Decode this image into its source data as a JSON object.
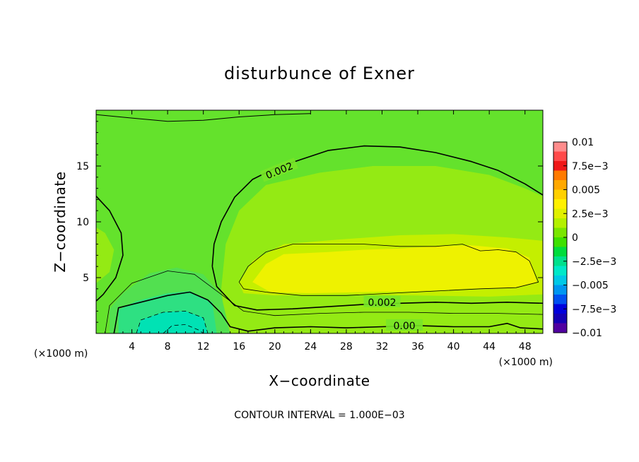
{
  "chart_data": {
    "type": "heatmap",
    "title": "disturbunce of Exner",
    "xlabel": "X−coordinate",
    "ylabel": "Z−coordinate",
    "x_unit_left": "(×1000 m)",
    "x_unit_right": "(×1000 m)",
    "xlim": [
      0,
      50
    ],
    "ylim": [
      0,
      20
    ],
    "x_ticks": [
      4,
      8,
      12,
      16,
      20,
      24,
      28,
      32,
      36,
      40,
      44,
      48
    ],
    "x_tick_labels": [
      "4",
      "8",
      "12",
      "16",
      "20",
      "24",
      "28",
      "32",
      "36",
      "40",
      "44",
      "48"
    ],
    "y_ticks": [
      5,
      10,
      15
    ],
    "y_tick_labels": [
      "5",
      "10",
      "15"
    ],
    "contour_interval_text": "CONTOUR INTERVAL = 1.000E−03",
    "contour_interval": 0.001,
    "contour_labels": [
      {
        "text": "0.002",
        "x": 20.5,
        "z": 14.6,
        "angle": -22
      },
      {
        "text": "0.002",
        "x": 32.0,
        "z": 2.8,
        "angle": 0
      },
      {
        "text": "0.00",
        "x": 34.5,
        "z": 0.7,
        "angle": 0
      }
    ],
    "colorbar": {
      "labels": [
        "0.01",
        "7.5e−3",
        "0.005",
        "2.5e−3",
        "0",
        "−2.5e−3",
        "−0.005",
        "−7.5e−3",
        "−0.01"
      ],
      "values": [
        0.01,
        0.0075,
        0.005,
        0.0025,
        0,
        -0.0025,
        -0.005,
        -0.0075,
        -0.01
      ],
      "colors": [
        "#ff8c8c",
        "#ff4a4a",
        "#f01818",
        "#ff7a00",
        "#ffa800",
        "#ffd000",
        "#fff000",
        "#e0f000",
        "#b4f000",
        "#7ae600",
        "#3ee000",
        "#00dc3c",
        "#00e08c",
        "#00e8c8",
        "#00c8e6",
        "#0096f0",
        "#0050f0",
        "#0000dc",
        "#1400b4",
        "#5000a0"
      ]
    },
    "field_colors": {
      "lowest": "#00e2b4",
      "low": "#2ee082",
      "neg_small": "#52e050",
      "near_zero": "#78e62a",
      "base": "#64e22c",
      "mid": "#94ea14",
      "high": "#c4ef00",
      "max": "#eef200"
    }
  }
}
